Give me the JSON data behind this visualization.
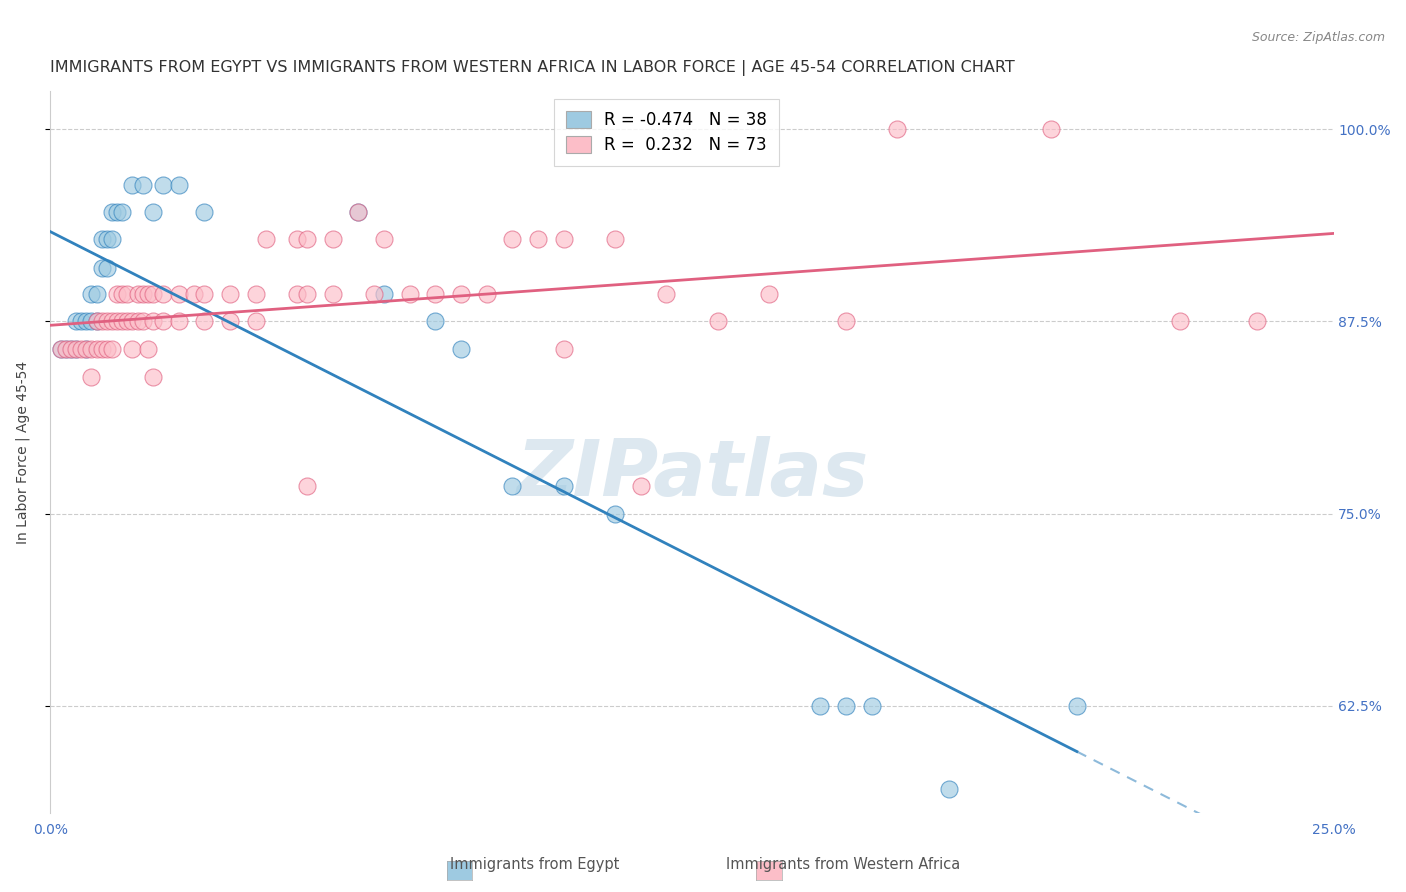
{
  "title": "IMMIGRANTS FROM EGYPT VS IMMIGRANTS FROM WESTERN AFRICA IN LABOR FORCE | AGE 45-54 CORRELATION CHART",
  "source": "Source: ZipAtlas.com",
  "ylabel": "In Labor Force | Age 45-54",
  "egypt_R": "-0.474",
  "egypt_N": "38",
  "west_africa_R": "0.232",
  "west_africa_N": "73",
  "egypt_color": "#9ecae1",
  "west_africa_color": "#fcbec8",
  "egypt_line_color": "#3182bd",
  "west_africa_line_color": "#e06080",
  "xlim": [
    0.0,
    0.25
  ],
  "ylim": [
    0.555,
    1.025
  ],
  "yticks": [
    0.625,
    0.75,
    0.875,
    1.0
  ],
  "ytick_labels": [
    "62.5%",
    "75.0%",
    "87.5%",
    "100.0%"
  ],
  "xticks": [
    0.0,
    0.05,
    0.1,
    0.15,
    0.2,
    0.25
  ],
  "xtick_labels": [
    "0.0%",
    "",
    "",
    "",
    "",
    "25.0%"
  ],
  "egypt_scatter": [
    [
      0.002,
      0.857
    ],
    [
      0.003,
      0.857
    ],
    [
      0.004,
      0.857
    ],
    [
      0.005,
      0.875
    ],
    [
      0.005,
      0.857
    ],
    [
      0.006,
      0.875
    ],
    [
      0.007,
      0.875
    ],
    [
      0.007,
      0.857
    ],
    [
      0.008,
      0.893
    ],
    [
      0.008,
      0.875
    ],
    [
      0.009,
      0.893
    ],
    [
      0.009,
      0.875
    ],
    [
      0.01,
      0.929
    ],
    [
      0.01,
      0.91
    ],
    [
      0.011,
      0.929
    ],
    [
      0.011,
      0.91
    ],
    [
      0.012,
      0.946
    ],
    [
      0.012,
      0.929
    ],
    [
      0.013,
      0.946
    ],
    [
      0.014,
      0.946
    ],
    [
      0.016,
      0.964
    ],
    [
      0.018,
      0.964
    ],
    [
      0.02,
      0.946
    ],
    [
      0.022,
      0.964
    ],
    [
      0.025,
      0.964
    ],
    [
      0.03,
      0.946
    ],
    [
      0.06,
      0.946
    ],
    [
      0.065,
      0.893
    ],
    [
      0.075,
      0.875
    ],
    [
      0.08,
      0.857
    ],
    [
      0.09,
      0.768
    ],
    [
      0.1,
      0.768
    ],
    [
      0.11,
      0.75
    ],
    [
      0.15,
      0.625
    ],
    [
      0.155,
      0.625
    ],
    [
      0.16,
      0.625
    ],
    [
      0.175,
      0.571
    ],
    [
      0.2,
      0.625
    ]
  ],
  "west_africa_scatter": [
    [
      0.002,
      0.857
    ],
    [
      0.003,
      0.857
    ],
    [
      0.004,
      0.857
    ],
    [
      0.005,
      0.857
    ],
    [
      0.006,
      0.857
    ],
    [
      0.007,
      0.857
    ],
    [
      0.008,
      0.857
    ],
    [
      0.008,
      0.839
    ],
    [
      0.009,
      0.875
    ],
    [
      0.009,
      0.857
    ],
    [
      0.01,
      0.875
    ],
    [
      0.01,
      0.857
    ],
    [
      0.011,
      0.875
    ],
    [
      0.011,
      0.857
    ],
    [
      0.012,
      0.875
    ],
    [
      0.012,
      0.857
    ],
    [
      0.013,
      0.893
    ],
    [
      0.013,
      0.875
    ],
    [
      0.014,
      0.893
    ],
    [
      0.014,
      0.875
    ],
    [
      0.015,
      0.893
    ],
    [
      0.015,
      0.875
    ],
    [
      0.016,
      0.875
    ],
    [
      0.016,
      0.857
    ],
    [
      0.017,
      0.893
    ],
    [
      0.017,
      0.875
    ],
    [
      0.018,
      0.893
    ],
    [
      0.018,
      0.875
    ],
    [
      0.019,
      0.893
    ],
    [
      0.019,
      0.857
    ],
    [
      0.02,
      0.893
    ],
    [
      0.02,
      0.875
    ],
    [
      0.02,
      0.839
    ],
    [
      0.022,
      0.893
    ],
    [
      0.022,
      0.875
    ],
    [
      0.025,
      0.893
    ],
    [
      0.025,
      0.875
    ],
    [
      0.028,
      0.893
    ],
    [
      0.03,
      0.893
    ],
    [
      0.03,
      0.875
    ],
    [
      0.035,
      0.893
    ],
    [
      0.035,
      0.875
    ],
    [
      0.04,
      0.893
    ],
    [
      0.04,
      0.875
    ],
    [
      0.042,
      0.929
    ],
    [
      0.048,
      0.929
    ],
    [
      0.048,
      0.893
    ],
    [
      0.05,
      0.929
    ],
    [
      0.05,
      0.893
    ],
    [
      0.05,
      0.768
    ],
    [
      0.055,
      0.929
    ],
    [
      0.055,
      0.893
    ],
    [
      0.06,
      0.946
    ],
    [
      0.063,
      0.893
    ],
    [
      0.065,
      0.929
    ],
    [
      0.07,
      0.893
    ],
    [
      0.075,
      0.893
    ],
    [
      0.08,
      0.893
    ],
    [
      0.085,
      0.893
    ],
    [
      0.09,
      0.929
    ],
    [
      0.095,
      0.929
    ],
    [
      0.1,
      0.929
    ],
    [
      0.1,
      0.857
    ],
    [
      0.11,
      0.929
    ],
    [
      0.115,
      0.768
    ],
    [
      0.12,
      0.893
    ],
    [
      0.13,
      0.875
    ],
    [
      0.14,
      0.893
    ],
    [
      0.155,
      0.875
    ],
    [
      0.165,
      1.0
    ],
    [
      0.195,
      1.0
    ],
    [
      0.22,
      0.875
    ],
    [
      0.235,
      0.875
    ]
  ],
  "background_color": "#ffffff",
  "grid_color": "#cccccc",
  "title_fontsize": 11.5,
  "axis_label_fontsize": 10,
  "tick_fontsize": 10,
  "legend_fontsize": 12,
  "right_ytick_color": "#4472c4",
  "xtick_color": "#4472c4",
  "watermark": "ZIPatlas"
}
